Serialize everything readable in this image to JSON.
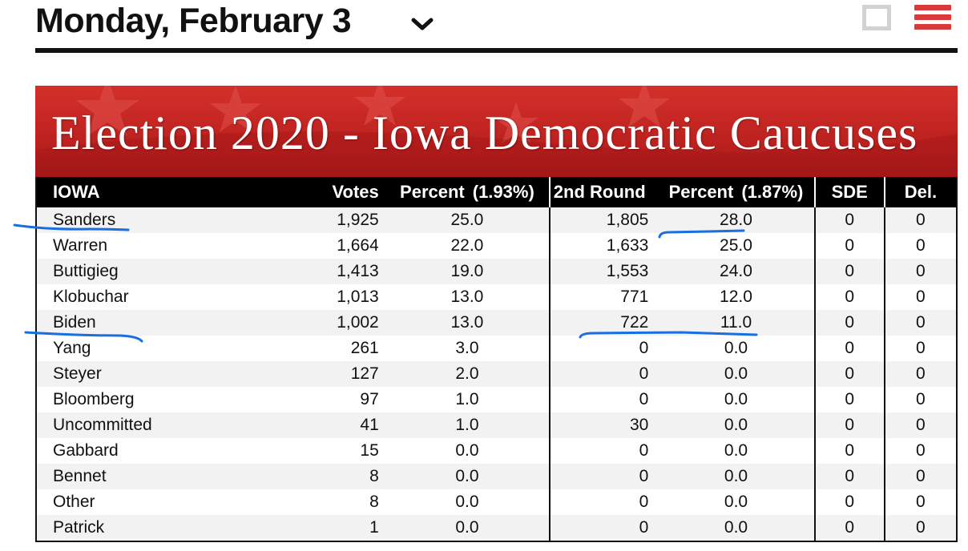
{
  "header": {
    "date_title": "Monday, February 3"
  },
  "colors": {
    "accent_red": "#d9393b",
    "banner_red": "#c0231f",
    "ink_blue": "#1a6fe0"
  },
  "icons": {
    "date_dropdown": "chevron-down-icon",
    "view_toggle": "square-icon",
    "menu": "hamburger-menu-icon"
  },
  "banner": {
    "title": "Election 2020 - Iowa Democratic Caucuses"
  },
  "table": {
    "headers": {
      "state": "IOWA",
      "votes": "Votes",
      "percent": "Percent",
      "percent_reporting": "(1.93%)",
      "round2": "2nd Round",
      "percent2": "Percent",
      "percent2_reporting": "(1.87%)",
      "sde": "SDE",
      "del": "Del."
    },
    "rows": [
      {
        "name": "Sanders",
        "votes": "1,925",
        "pct": "25.0",
        "r2": "1,805",
        "pct2": "28.0",
        "sde": "0",
        "del": "0"
      },
      {
        "name": "Warren",
        "votes": "1,664",
        "pct": "22.0",
        "r2": "1,633",
        "pct2": "25.0",
        "sde": "0",
        "del": "0"
      },
      {
        "name": "Buttigieg",
        "votes": "1,413",
        "pct": "19.0",
        "r2": "1,553",
        "pct2": "24.0",
        "sde": "0",
        "del": "0"
      },
      {
        "name": "Klobuchar",
        "votes": "1,013",
        "pct": "13.0",
        "r2": "771",
        "pct2": "12.0",
        "sde": "0",
        "del": "0"
      },
      {
        "name": "Biden",
        "votes": "1,002",
        "pct": "13.0",
        "r2": "722",
        "pct2": "11.0",
        "sde": "0",
        "del": "0"
      },
      {
        "name": "Yang",
        "votes": "261",
        "pct": "3.0",
        "r2": "0",
        "pct2": "0.0",
        "sde": "0",
        "del": "0"
      },
      {
        "name": "Steyer",
        "votes": "127",
        "pct": "2.0",
        "r2": "0",
        "pct2": "0.0",
        "sde": "0",
        "del": "0"
      },
      {
        "name": "Bloomberg",
        "votes": "97",
        "pct": "1.0",
        "r2": "0",
        "pct2": "0.0",
        "sde": "0",
        "del": "0"
      },
      {
        "name": "Uncommitted",
        "votes": "41",
        "pct": "1.0",
        "r2": "30",
        "pct2": "0.0",
        "sde": "0",
        "del": "0"
      },
      {
        "name": "Gabbard",
        "votes": "15",
        "pct": "0.0",
        "r2": "0",
        "pct2": "0.0",
        "sde": "0",
        "del": "0"
      },
      {
        "name": "Bennet",
        "votes": "8",
        "pct": "0.0",
        "r2": "0",
        "pct2": "0.0",
        "sde": "0",
        "del": "0"
      },
      {
        "name": "Other",
        "votes": "8",
        "pct": "0.0",
        "r2": "0",
        "pct2": "0.0",
        "sde": "0",
        "del": "0"
      },
      {
        "name": "Patrick",
        "votes": "1",
        "pct": "0.0",
        "r2": "0",
        "pct2": "0.0",
        "sde": "0",
        "del": "0"
      }
    ]
  }
}
